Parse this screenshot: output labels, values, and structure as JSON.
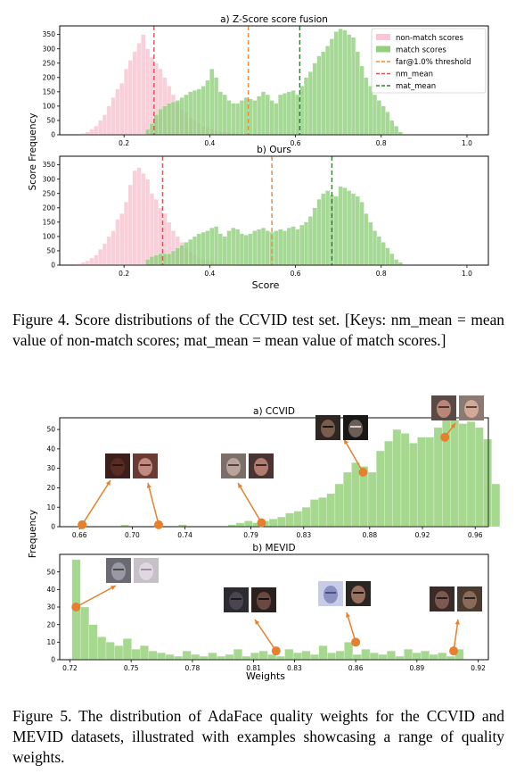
{
  "figure4": {
    "ylabel": "Score Frequency",
    "xlabel": "Score",
    "caption": "Figure 4.  Score distributions of the CCVID test set.  [Keys: nm_mean = mean value of non-match scores; mat_mean = mean value of match scores.]",
    "colors": {
      "nonmatch": "#f8c8d4",
      "match": "#92d07f",
      "threshold": "#f08a33",
      "nm_mean": "#d9534f",
      "mat_mean": "#2e7d32"
    }
  },
  "figure5": {
    "ylabel": "Frequency",
    "xlabel": "Weights",
    "caption": "Figure 5.  The distribution of AdaFace quality weights for the CCVID and MEVID datasets, illustrated with examples showcasing a range of quality weights.",
    "colors": {
      "bars": "#a6d98f",
      "marker": "#e6802e"
    }
  },
  "chart_data": [
    {
      "type": "bar",
      "title": "a) Z-Score score fusion",
      "xlim": [
        0.05,
        1.05
      ],
      "ylim": [
        0,
        380
      ],
      "xticks": [
        0.2,
        0.4,
        0.6,
        0.8,
        1.0
      ],
      "xtick_labels": [
        "0.2",
        "0.4",
        "0.6",
        "0.8",
        "1.0"
      ],
      "yticks": [
        0,
        50,
        100,
        150,
        200,
        250,
        300,
        350
      ],
      "legend_position": "top-right",
      "legend": [
        "non-match scores",
        "match scores",
        "far@1.0% threshold",
        "nm_mean",
        "mat_mean"
      ],
      "series": [
        {
          "name": "non-match scores",
          "bin_start": 0.1,
          "bin_width": 0.01,
          "values": [
            5,
            10,
            20,
            30,
            50,
            70,
            100,
            130,
            160,
            180,
            230,
            260,
            290,
            320,
            350,
            300,
            270,
            250,
            230,
            200,
            170,
            140,
            110,
            90,
            80,
            60,
            50,
            40,
            30,
            25,
            20,
            15,
            12,
            10,
            8,
            6,
            4,
            3,
            2,
            1
          ]
        },
        {
          "name": "match scores",
          "bin_start": 0.25,
          "bin_width": 0.01,
          "values": [
            20,
            40,
            70,
            90,
            100,
            110,
            115,
            120,
            130,
            140,
            150,
            155,
            160,
            170,
            190,
            230,
            200,
            150,
            140,
            120,
            110,
            110,
            120,
            130,
            125,
            120,
            135,
            150,
            140,
            120,
            110,
            140,
            145,
            150,
            155,
            140,
            170,
            200,
            220,
            250,
            275,
            290,
            310,
            335,
            360,
            370,
            365,
            350,
            340,
            290,
            240,
            200,
            170,
            140,
            120,
            100,
            80,
            50,
            30,
            10
          ]
        }
      ],
      "lines": [
        {
          "name": "far@1.0% threshold",
          "x": 0.49
        },
        {
          "name": "nm_mean",
          "x": 0.27
        },
        {
          "name": "mat_mean",
          "x": 0.61
        }
      ]
    },
    {
      "type": "bar",
      "title": "b) Ours",
      "xlim": [
        0.05,
        1.05
      ],
      "ylim": [
        0,
        380
      ],
      "xticks": [
        0.2,
        0.4,
        0.6,
        0.8,
        1.0
      ],
      "xtick_labels": [
        "0.2",
        "0.4",
        "0.6",
        "0.8",
        "1.0"
      ],
      "yticks": [
        0,
        50,
        100,
        150,
        200,
        250,
        300,
        350
      ],
      "series": [
        {
          "name": "non-match scores",
          "bin_start": 0.09,
          "bin_width": 0.01,
          "values": [
            5,
            10,
            15,
            25,
            35,
            55,
            75,
            100,
            120,
            160,
            180,
            220,
            280,
            330,
            340,
            320,
            300,
            250,
            230,
            200,
            180,
            150,
            120,
            100,
            80,
            60,
            45,
            35,
            25,
            20,
            15,
            12,
            10,
            8,
            6,
            4,
            3,
            2
          ]
        },
        {
          "name": "match scores",
          "bin_start": 0.25,
          "bin_width": 0.01,
          "values": [
            20,
            30,
            35,
            40,
            40,
            40,
            50,
            60,
            70,
            80,
            90,
            100,
            110,
            115,
            120,
            130,
            135,
            110,
            100,
            120,
            130,
            125,
            110,
            105,
            110,
            120,
            125,
            130,
            120,
            115,
            120,
            125,
            120,
            130,
            135,
            125,
            140,
            150,
            170,
            200,
            230,
            250,
            260,
            245,
            240,
            275,
            270,
            260,
            250,
            240,
            220,
            180,
            150,
            120,
            100,
            80,
            60,
            40,
            20,
            10
          ]
        }
      ],
      "lines": [
        {
          "name": "far@1.0% threshold",
          "x": 0.545
        },
        {
          "name": "nm_mean",
          "x": 0.29
        },
        {
          "name": "mat_mean",
          "x": 0.685
        }
      ]
    },
    {
      "type": "bar",
      "title": "a) CCVID",
      "xlim": [
        0.645,
        0.97
      ],
      "ylim": [
        0,
        56
      ],
      "xticks": [
        0.66,
        0.7,
        0.74,
        0.79,
        0.83,
        0.88,
        0.92,
        0.96
      ],
      "xtick_labels": [
        "0.66",
        "0.70",
        "0.74",
        "0.79",
        "0.83",
        "0.88",
        "0.92",
        "0.96"
      ],
      "yticks": [
        0,
        10,
        20,
        30,
        40,
        50
      ],
      "bin_start": 0.66,
      "bin_width": 0.00625,
      "values": [
        0,
        0,
        0,
        0,
        0,
        1,
        0,
        0,
        0,
        1,
        0,
        0,
        1,
        0,
        0,
        0,
        0,
        0,
        1,
        2,
        3,
        2,
        3,
        4,
        5,
        7,
        8,
        10,
        14,
        15,
        17,
        22,
        28,
        33,
        31,
        28,
        39,
        44,
        50,
        48,
        43,
        46,
        46,
        51,
        55,
        55,
        53,
        54,
        51,
        45,
        22
      ],
      "markers": [
        {
          "x": 0.662,
          "y": 1
        },
        {
          "x": 0.72,
          "y": 1
        },
        {
          "x": 0.798,
          "y": 2
        },
        {
          "x": 0.875,
          "y": 28
        },
        {
          "x": 0.937,
          "y": 46
        }
      ]
    },
    {
      "type": "bar",
      "title": "b) MEVID",
      "xlim": [
        0.715,
        0.925
      ],
      "ylim": [
        0,
        60
      ],
      "xticks": [
        0.72,
        0.75,
        0.78,
        0.81,
        0.83,
        0.86,
        0.89,
        0.92
      ],
      "xtick_labels": [
        "0.72",
        "0.75",
        "0.78",
        "0.81",
        "0.83",
        "0.86",
        "0.89",
        "0.92"
      ],
      "yticks": [
        0,
        10,
        20,
        30,
        40,
        50
      ],
      "bin_start": 0.721,
      "bin_width": 0.00417,
      "values": [
        57,
        30,
        20,
        13,
        10,
        8,
        12,
        6,
        8,
        5,
        4,
        3,
        2,
        5,
        3,
        2,
        4,
        2,
        3,
        6,
        2,
        4,
        5,
        3,
        2,
        6,
        4,
        5,
        3,
        8,
        4,
        5,
        10,
        3,
        6,
        4,
        3,
        5,
        2,
        6,
        4,
        5,
        3,
        4,
        2,
        6
      ],
      "markers": [
        {
          "x": 0.723,
          "y": 30
        },
        {
          "x": 0.821,
          "y": 5
        },
        {
          "x": 0.86,
          "y": 10
        },
        {
          "x": 0.908,
          "y": 5
        }
      ]
    }
  ]
}
